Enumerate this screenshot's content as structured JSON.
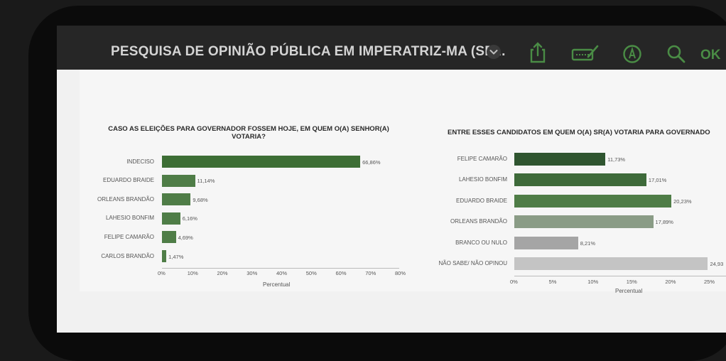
{
  "header": {
    "title": "PESQUISA DE OPINIÃO PÚBLICA EM IMPERATRIZ-MA (SE...",
    "ok_label": "OK",
    "icons": [
      "chevron-down-icon",
      "share-icon",
      "markup-icon",
      "pen-icon",
      "search-icon"
    ],
    "accent_color": "#4a8c45"
  },
  "chart_data": [
    {
      "type": "bar",
      "orientation": "horizontal",
      "title": "CASO AS ELEIÇÕES PARA GOVERNADOR FOSSEM HOJE, EM QUEM O(A) SENHOR(A) VOTARIA?",
      "categories": [
        "INDECISO",
        "EDUARDO BRAIDE",
        "ORLEANS BRANDÃO",
        "LAHESIO BONFIM",
        "FELIPE CAMARÃO",
        "CARLOS BRANDÃO"
      ],
      "values": [
        66.86,
        11.14,
        9.68,
        6.16,
        4.69,
        1.47
      ],
      "value_labels": [
        "66,86%",
        "11,14%",
        "9,68%",
        "6,16%",
        "4,69%",
        "1,47%"
      ],
      "xlabel": "Percentual",
      "xlim": [
        0,
        80
      ],
      "ticks": [
        "0%",
        "10%",
        "20%",
        "30%",
        "40%",
        "50%",
        "60%",
        "70%",
        "80%"
      ],
      "colors": [
        "#3d6e35",
        "#4f7d47",
        "#4f7d47",
        "#4f7d47",
        "#4f7d47",
        "#4f7d47"
      ],
      "grid": false
    },
    {
      "type": "bar",
      "orientation": "horizontal",
      "title": "ENTRE ESSES CANDIDATOS EM QUEM O(A) SR(A) VOTARIA PARA GOVERNADO",
      "categories": [
        "FELIPE CAMARÃO",
        "LAHESIO BONFIM",
        "EDUARDO BRAIDE",
        "ORLEANS BRANDÃO",
        "BRANCO OU NULO",
        "NÃO SABE/ NÃO OPINOU"
      ],
      "values": [
        11.73,
        17.01,
        20.23,
        17.89,
        8.21,
        24.93
      ],
      "value_labels": [
        "11,73%",
        "17,01%",
        "20,23%",
        "17,89%",
        "8,21%",
        "24,93"
      ],
      "xlabel": "Percentual",
      "xlim": [
        0,
        25
      ],
      "ticks": [
        "0%",
        "5%",
        "10%",
        "15%",
        "20%",
        "25%"
      ],
      "colors": [
        "#2f5530",
        "#3e6a3a",
        "#4f7d47",
        "#8a9c86",
        "#a5a5a5",
        "#c4c4c4"
      ],
      "grid": false
    }
  ]
}
